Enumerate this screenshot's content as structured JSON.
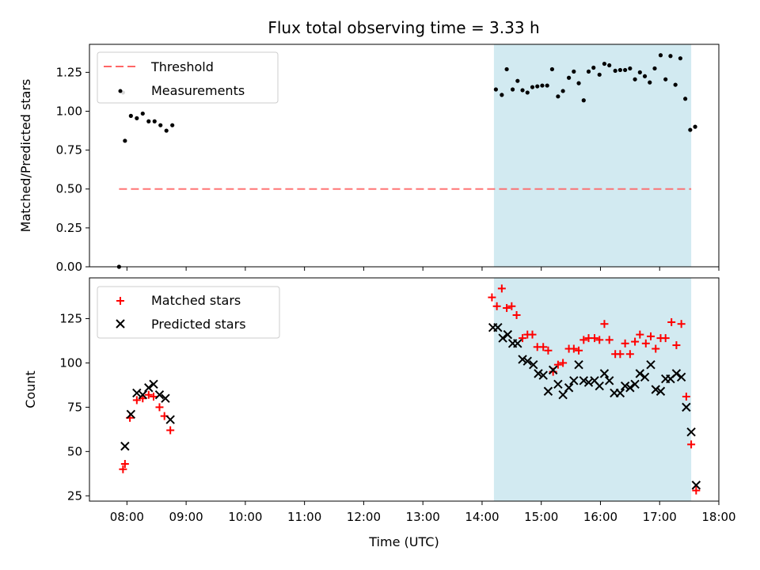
{
  "chart_data": [
    {
      "type": "scatter",
      "title": "Flux total observing time = 3.33 h",
      "ylabel": "Matched/Predicted stars",
      "xlabel": "",
      "xlim": [
        "07:22",
        "18:00"
      ],
      "ylim": [
        0,
        1.43
      ],
      "yticks": [
        "0.00",
        "0.25",
        "0.50",
        "0.75",
        "1.00",
        "1.25"
      ],
      "shaded_interval": {
        "start": "14:12",
        "end": "17:32",
        "color": "#add8e6"
      },
      "legend": {
        "placement": "top-left",
        "entries": [
          {
            "label": "Threshold",
            "marker": "dashed-line",
            "color": "#ff6666"
          },
          {
            "label": "Measurements",
            "marker": "dot",
            "color": "#000000"
          }
        ]
      },
      "threshold": {
        "name": "Threshold",
        "value": 0.5,
        "x_start": "07:52",
        "x_end": "17:32",
        "color": "#ff6666"
      },
      "series": [
        {
          "name": "Measurements",
          "color": "#000000",
          "points": [
            [
              "07:52",
              0.0
            ],
            [
              "07:56",
              1.12
            ],
            [
              "07:58",
              0.81
            ],
            [
              "08:04",
              0.97
            ],
            [
              "08:10",
              0.955
            ],
            [
              "08:16",
              0.985
            ],
            [
              "08:22",
              0.935
            ],
            [
              "08:28",
              0.935
            ],
            [
              "08:34",
              0.91
            ],
            [
              "08:40",
              0.875
            ],
            [
              "08:46",
              0.91
            ],
            [
              "14:14",
              1.14
            ],
            [
              "14:20",
              1.105
            ],
            [
              "14:25",
              1.27
            ],
            [
              "14:31",
              1.14
            ],
            [
              "14:36",
              1.195
            ],
            [
              "14:41",
              1.135
            ],
            [
              "14:46",
              1.12
            ],
            [
              "14:51",
              1.155
            ],
            [
              "14:56",
              1.16
            ],
            [
              "15:01",
              1.165
            ],
            [
              "15:06",
              1.165
            ],
            [
              "15:11",
              1.27
            ],
            [
              "15:17",
              1.095
            ],
            [
              "15:22",
              1.13
            ],
            [
              "15:28",
              1.215
            ],
            [
              "15:33",
              1.255
            ],
            [
              "15:38",
              1.18
            ],
            [
              "15:43",
              1.07
            ],
            [
              "15:48",
              1.255
            ],
            [
              "15:53",
              1.28
            ],
            [
              "15:59",
              1.235
            ],
            [
              "16:04",
              1.305
            ],
            [
              "16:09",
              1.295
            ],
            [
              "16:15",
              1.26
            ],
            [
              "16:20",
              1.265
            ],
            [
              "16:25",
              1.265
            ],
            [
              "16:30",
              1.275
            ],
            [
              "16:35",
              1.205
            ],
            [
              "16:40",
              1.25
            ],
            [
              "16:45",
              1.225
            ],
            [
              "16:50",
              1.185
            ],
            [
              "16:55",
              1.275
            ],
            [
              "17:01",
              1.36
            ],
            [
              "17:06",
              1.205
            ],
            [
              "17:11",
              1.355
            ],
            [
              "17:16",
              1.17
            ],
            [
              "17:21",
              1.34
            ],
            [
              "17:26",
              1.08
            ],
            [
              "17:31",
              0.88
            ],
            [
              "17:36",
              0.9
            ]
          ]
        }
      ]
    },
    {
      "type": "scatter",
      "xlabel": "Time (UTC)",
      "ylabel": "Count",
      "xlim": [
        "07:22",
        "18:00"
      ],
      "ylim": [
        22,
        148
      ],
      "xticks": [
        "08:00",
        "09:00",
        "10:00",
        "11:00",
        "12:00",
        "13:00",
        "14:00",
        "15:00",
        "16:00",
        "17:00",
        "18:00"
      ],
      "yticks": [
        "25",
        "50",
        "75",
        "100",
        "125"
      ],
      "shaded_interval": {
        "start": "14:12",
        "end": "17:32",
        "color": "#add8e6"
      },
      "legend": {
        "placement": "top-left",
        "entries": [
          {
            "label": "Matched stars",
            "marker": "plus",
            "color": "#ff0000"
          },
          {
            "label": "Predicted stars",
            "marker": "x",
            "color": "#000000"
          }
        ]
      },
      "series": [
        {
          "name": "Matched stars",
          "color": "#ff0000",
          "marker": "plus",
          "points": [
            [
              "07:56",
              40
            ],
            [
              "07:58",
              43
            ],
            [
              "08:03",
              69
            ],
            [
              "08:10",
              79
            ],
            [
              "08:16",
              80
            ],
            [
              "08:22",
              82
            ],
            [
              "08:27",
              81
            ],
            [
              "08:33",
              75
            ],
            [
              "08:38",
              70
            ],
            [
              "08:44",
              62
            ],
            [
              "14:10",
              137
            ],
            [
              "14:15",
              132
            ],
            [
              "14:20",
              142
            ],
            [
              "14:25",
              131
            ],
            [
              "14:30",
              132
            ],
            [
              "14:35",
              127
            ],
            [
              "14:41",
              114
            ],
            [
              "14:46",
              116
            ],
            [
              "14:51",
              116
            ],
            [
              "14:56",
              109
            ],
            [
              "15:02",
              109
            ],
            [
              "15:07",
              107
            ],
            [
              "15:12",
              95
            ],
            [
              "15:17",
              99
            ],
            [
              "15:22",
              100
            ],
            [
              "15:28",
              108
            ],
            [
              "15:33",
              108
            ],
            [
              "15:38",
              107
            ],
            [
              "15:43",
              113
            ],
            [
              "15:48",
              114
            ],
            [
              "15:54",
              114
            ],
            [
              "15:59",
              113
            ],
            [
              "16:04",
              122
            ],
            [
              "16:09",
              113
            ],
            [
              "16:15",
              105
            ],
            [
              "16:20",
              105
            ],
            [
              "16:25",
              111
            ],
            [
              "16:30",
              105
            ],
            [
              "16:35",
              112
            ],
            [
              "16:40",
              116
            ],
            [
              "16:46",
              111
            ],
            [
              "16:51",
              115
            ],
            [
              "16:56",
              108
            ],
            [
              "17:01",
              114
            ],
            [
              "17:06",
              114
            ],
            [
              "17:12",
              123
            ],
            [
              "17:17",
              110
            ],
            [
              "17:22",
              122
            ],
            [
              "17:27",
              81
            ],
            [
              "17:32",
              54
            ],
            [
              "17:37",
              28
            ]
          ]
        },
        {
          "name": "Predicted stars",
          "color": "#000000",
          "marker": "x",
          "points": [
            [
              "07:58",
              53
            ],
            [
              "08:04",
              71
            ],
            [
              "08:10",
              83
            ],
            [
              "08:16",
              82
            ],
            [
              "08:22",
              86
            ],
            [
              "08:27",
              88
            ],
            [
              "08:33",
              82
            ],
            [
              "08:39",
              80
            ],
            [
              "08:44",
              68
            ],
            [
              "14:11",
              120
            ],
            [
              "14:16",
              120
            ],
            [
              "14:21",
              114
            ],
            [
              "14:26",
              116
            ],
            [
              "14:31",
              111
            ],
            [
              "14:36",
              111
            ],
            [
              "14:41",
              102
            ],
            [
              "14:46",
              101
            ],
            [
              "14:52",
              99
            ],
            [
              "14:57",
              94
            ],
            [
              "15:02",
              93
            ],
            [
              "15:07",
              84
            ],
            [
              "15:12",
              96
            ],
            [
              "15:17",
              88
            ],
            [
              "15:22",
              82
            ],
            [
              "15:28",
              86
            ],
            [
              "15:33",
              90
            ],
            [
              "15:38",
              99
            ],
            [
              "15:43",
              90
            ],
            [
              "15:48",
              89
            ],
            [
              "15:54",
              90
            ],
            [
              "15:59",
              87
            ],
            [
              "16:04",
              94
            ],
            [
              "16:09",
              90
            ],
            [
              "16:14",
              83
            ],
            [
              "16:20",
              83
            ],
            [
              "16:25",
              87
            ],
            [
              "16:30",
              86
            ],
            [
              "16:35",
              88
            ],
            [
              "16:40",
              94
            ],
            [
              "16:45",
              92
            ],
            [
              "16:51",
              99
            ],
            [
              "16:56",
              85
            ],
            [
              "17:01",
              84
            ],
            [
              "17:06",
              91
            ],
            [
              "17:11",
              91
            ],
            [
              "17:17",
              94
            ],
            [
              "17:22",
              92
            ],
            [
              "17:27",
              75
            ],
            [
              "17:32",
              61
            ],
            [
              "17:37",
              31
            ]
          ]
        }
      ]
    }
  ]
}
